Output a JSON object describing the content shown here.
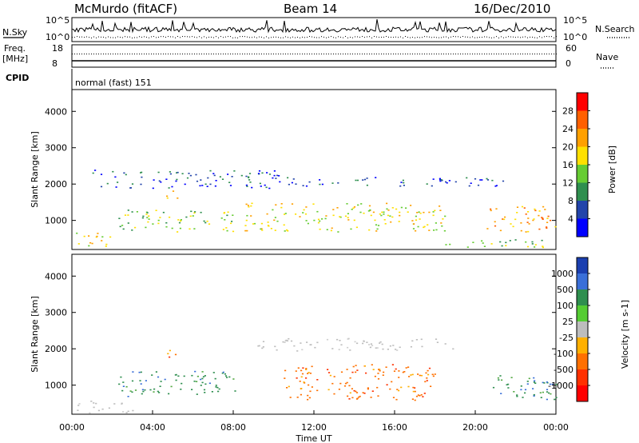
{
  "header": {
    "station": "McMurdo (fitACF)",
    "beam": "Beam 14",
    "date": "16/Dec/2010"
  },
  "status_panels": {
    "nsky_label": "N.Sky",
    "nsearch_label": "N.Search",
    "nsky_ticks": [
      "10^5",
      "10^0"
    ],
    "nsearch_ticks": [
      "10^5",
      "10^0"
    ],
    "freq_label_line1": "Freq.",
    "freq_label_line2": "[MHz]",
    "freq_ticks": [
      "18",
      "8"
    ],
    "nave_label": "Nave",
    "nave_ticks": [
      "60",
      "0"
    ],
    "cpid_label": "CPID",
    "cpid_value": "normal (fast) 151"
  },
  "chart_data": [
    {
      "type": "heatmap",
      "name": "power-panel",
      "ylabel": "Slant Range [km]",
      "yticks": [
        "1000",
        "2000",
        "3000",
        "4000"
      ],
      "ylim": [
        200,
        4600
      ],
      "xlim_hours": [
        0,
        24
      ],
      "colorbar": {
        "label": "Power [dB]",
        "ticks": [
          "28",
          "24",
          "20",
          "16",
          "12",
          "8",
          "4"
        ],
        "colors": [
          "#ff0000",
          "#ff6000",
          "#ffa000",
          "#ffe000",
          "#66cc33",
          "#2f8f4f",
          "#2244aa",
          "#0000ff"
        ]
      },
      "bands": [
        {
          "x0": 0.2,
          "x1": 2.0,
          "y0": 250,
          "y1": 700,
          "level": 5
        },
        {
          "x0": 2.3,
          "x1": 8.2,
          "y0": 700,
          "y1": 1300,
          "level": 4
        },
        {
          "x0": 4.6,
          "x1": 5.2,
          "y0": 1600,
          "y1": 2000,
          "level": 6
        },
        {
          "x0": 1.0,
          "x1": 10.5,
          "y0": 1900,
          "y1": 2400,
          "level": 2
        },
        {
          "x0": 8.5,
          "x1": 18.5,
          "y0": 700,
          "y1": 1500,
          "level": 5
        },
        {
          "x0": 10.5,
          "x1": 21.5,
          "y0": 1950,
          "y1": 2200,
          "level": 2
        },
        {
          "x0": 20.5,
          "x1": 24.0,
          "y0": 700,
          "y1": 1400,
          "level": 6
        },
        {
          "x0": 18.5,
          "x1": 23.5,
          "y0": 250,
          "y1": 500,
          "level": 4
        }
      ]
    },
    {
      "type": "heatmap",
      "name": "velocity-panel",
      "ylabel": "Slant Range [km]",
      "yticks": [
        "1000",
        "2000",
        "3000",
        "4000"
      ],
      "ylim": [
        200,
        4600
      ],
      "xlim_hours": [
        0,
        24
      ],
      "xlabel": "Time UT",
      "xticks": [
        "00:00",
        "04:00",
        "08:00",
        "12:00",
        "16:00",
        "20:00",
        "00:00"
      ],
      "colorbar": {
        "label": "Velocity [m s-1]",
        "ticks": [
          "1000",
          "500",
          "100",
          "25",
          "-25",
          "-100",
          "-500",
          "-1000"
        ],
        "colors": [
          "#1b3fb0",
          "#3a6fd8",
          "#2f8f4f",
          "#55cc33",
          "#bdbdbd",
          "#ffb000",
          "#ff7000",
          "#ff3000",
          "#ff0000"
        ]
      },
      "bands": [
        {
          "x0": 0.2,
          "x1": 3.0,
          "y0": 250,
          "y1": 600,
          "level": "ground"
        },
        {
          "x0": 2.3,
          "x1": 8.2,
          "y0": 700,
          "y1": 1400,
          "level": "positive"
        },
        {
          "x0": 4.6,
          "x1": 5.2,
          "y0": 1600,
          "y1": 2000,
          "level": "negative"
        },
        {
          "x0": 10.5,
          "x1": 18.0,
          "y0": 600,
          "y1": 1600,
          "level": "negative"
        },
        {
          "x0": 9.0,
          "x1": 19.0,
          "y0": 1950,
          "y1": 2300,
          "level": "ground"
        },
        {
          "x0": 20.5,
          "x1": 24.0,
          "y0": 600,
          "y1": 1300,
          "level": "positive"
        }
      ]
    }
  ]
}
